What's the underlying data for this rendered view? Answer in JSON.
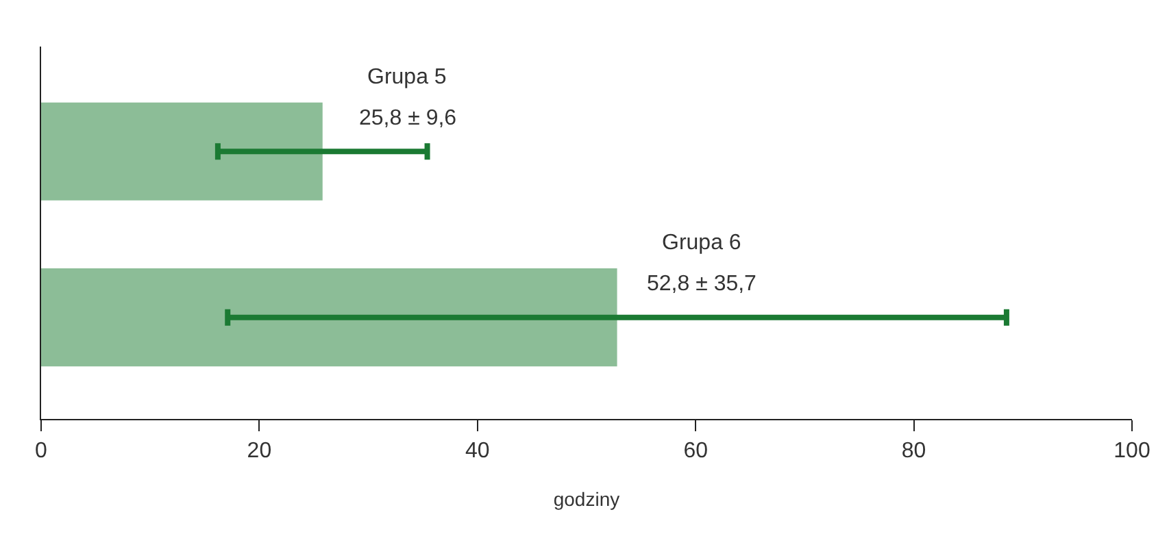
{
  "chart_data": {
    "type": "bar",
    "orientation": "horizontal",
    "categories": [
      "Grupa 5",
      "Grupa 6"
    ],
    "values": [
      25.8,
      52.8
    ],
    "errors": [
      9.6,
      35.7
    ],
    "value_labels": [
      "25,8 ± 9,6",
      "52,8 ± 35,7"
    ],
    "color": "#8cbd97",
    "xlabel": "godziny",
    "xlim": [
      0,
      100
    ],
    "xticks": [
      0,
      20,
      40,
      60,
      80,
      100
    ],
    "tick_labels": "x",
    "grid": false
  }
}
